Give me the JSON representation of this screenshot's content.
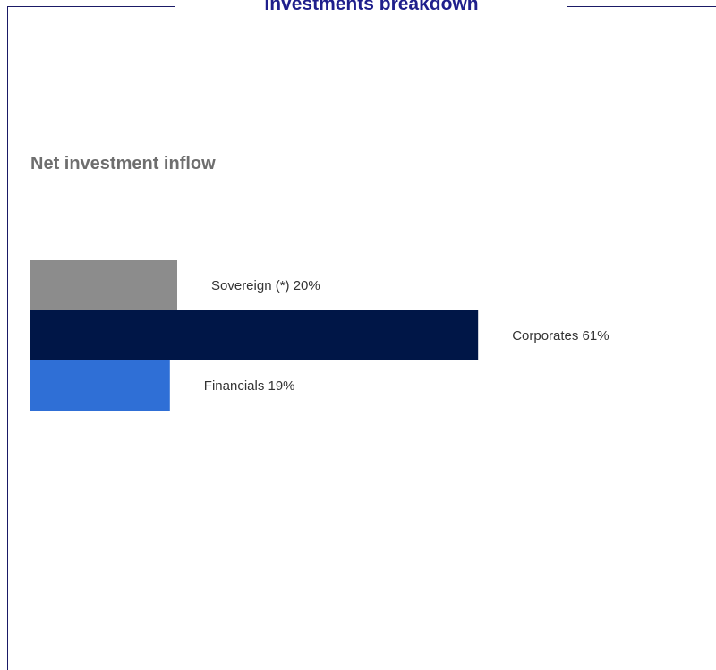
{
  "title": "Investments breakdown",
  "subtitle": "Net investment inflow",
  "chart_data": {
    "type": "bar",
    "orientation": "horizontal",
    "categories": [
      "Sovereign (*)",
      "Corporates",
      "Financials"
    ],
    "values": [
      20,
      61,
      19
    ],
    "labels": [
      "Sovereign (*) 20%",
      "Corporates 61%",
      "Financials 19%"
    ],
    "unit": "%",
    "colors": [
      "#8c8c8c",
      "#001647",
      "#2f6fd6"
    ],
    "xlim": [
      0,
      100
    ],
    "grid": false,
    "legend": "none"
  }
}
